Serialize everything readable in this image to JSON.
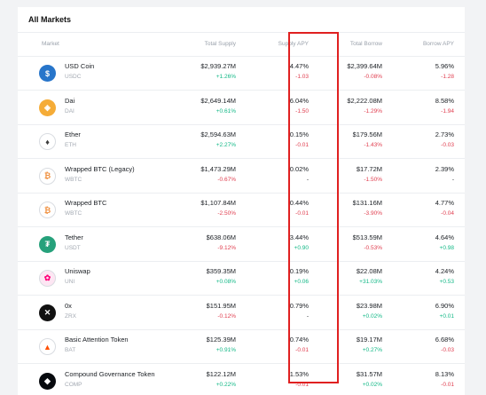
{
  "title": "All Markets",
  "headers": {
    "market": "Market",
    "total_supply": "Total Supply",
    "supply_apy": "Supply APY",
    "total_borrow": "Total Borrow",
    "borrow_apy": "Borrow APY"
  },
  "rows": [
    {
      "name": "USD Coin",
      "symbol": "USDC",
      "icon": "usdc-icon",
      "icon_color": "#2775ca",
      "icon_glyph": "$",
      "total_supply": "$2,939.27M",
      "total_supply_change": "+1.26%",
      "supply_apy": "4.47%",
      "supply_apy_change": "-1.03",
      "total_borrow": "$2,399.64M",
      "total_borrow_change": "-0.08%",
      "borrow_apy": "5.96%",
      "borrow_apy_change": "-1.28"
    },
    {
      "name": "Dai",
      "symbol": "DAI",
      "icon": "dai-icon",
      "icon_color": "#f5ac37",
      "icon_glyph": "◈",
      "total_supply": "$2,649.14M",
      "total_supply_change": "+0.61%",
      "supply_apy": "6.04%",
      "supply_apy_change": "-1.50",
      "total_borrow": "$2,222.08M",
      "total_borrow_change": "-1.29%",
      "borrow_apy": "8.58%",
      "borrow_apy_change": "-1.94"
    },
    {
      "name": "Ether",
      "symbol": "ETH",
      "icon": "ether-icon",
      "icon_color": "#ffffff",
      "icon_glyph": "♦",
      "total_supply": "$2,594.63M",
      "total_supply_change": "+2.27%",
      "supply_apy": "0.15%",
      "supply_apy_change": "-0.01",
      "total_borrow": "$179.56M",
      "total_borrow_change": "-1.43%",
      "borrow_apy": "2.73%",
      "borrow_apy_change": "-0.03"
    },
    {
      "name": "Wrapped BTC (Legacy)",
      "symbol": "WBTC",
      "icon": "wbtc-legacy-icon",
      "icon_color": "#ffffff",
      "icon_glyph": "₿",
      "total_supply": "$1,473.29M",
      "total_supply_change": "-0.67%",
      "supply_apy": "0.02%",
      "supply_apy_change": "-",
      "total_borrow": "$17.72M",
      "total_borrow_change": "-1.50%",
      "borrow_apy": "2.39%",
      "borrow_apy_change": "-"
    },
    {
      "name": "Wrapped BTC",
      "symbol": "WBTC",
      "icon": "wbtc-icon",
      "icon_color": "#ffffff",
      "icon_glyph": "₿",
      "total_supply": "$1,107.84M",
      "total_supply_change": "-2.50%",
      "supply_apy": "0.44%",
      "supply_apy_change": "-0.01",
      "total_borrow": "$131.16M",
      "total_borrow_change": "-3.90%",
      "borrow_apy": "4.77%",
      "borrow_apy_change": "-0.04"
    },
    {
      "name": "Tether",
      "symbol": "USDT",
      "icon": "tether-icon",
      "icon_color": "#26a17b",
      "icon_glyph": "₮",
      "total_supply": "$638.06M",
      "total_supply_change": "-9.12%",
      "supply_apy": "3.44%",
      "supply_apy_change": "+0.90",
      "total_borrow": "$513.59M",
      "total_borrow_change": "-0.53%",
      "borrow_apy": "4.64%",
      "borrow_apy_change": "+0.98"
    },
    {
      "name": "Uniswap",
      "symbol": "UNI",
      "icon": "uniswap-icon",
      "icon_color": "#fde6f3",
      "icon_glyph": "✿",
      "total_supply": "$359.35M",
      "total_supply_change": "+0.08%",
      "supply_apy": "0.19%",
      "supply_apy_change": "+0.06",
      "total_borrow": "$22.08M",
      "total_borrow_change": "+31.03%",
      "borrow_apy": "4.24%",
      "borrow_apy_change": "+0.53"
    },
    {
      "name": "0x",
      "symbol": "ZRX",
      "icon": "zrx-icon",
      "icon_color": "#111111",
      "icon_glyph": "✕",
      "total_supply": "$151.95M",
      "total_supply_change": "-0.12%",
      "supply_apy": "0.79%",
      "supply_apy_change": "-",
      "total_borrow": "$23.98M",
      "total_borrow_change": "+0.02%",
      "borrow_apy": "6.90%",
      "borrow_apy_change": "+0.01"
    },
    {
      "name": "Basic Attention Token",
      "symbol": "BAT",
      "icon": "bat-icon",
      "icon_color": "#ffffff",
      "icon_glyph": "▲",
      "total_supply": "$125.39M",
      "total_supply_change": "+0.91%",
      "supply_apy": "0.74%",
      "supply_apy_change": "-0.01",
      "total_borrow": "$19.17M",
      "total_borrow_change": "+0.27%",
      "borrow_apy": "6.68%",
      "borrow_apy_change": "-0.03"
    },
    {
      "name": "Compound Governance Token",
      "symbol": "COMP",
      "icon": "comp-icon",
      "icon_color": "#070a0e",
      "icon_glyph": "◆",
      "total_supply": "$122.12M",
      "total_supply_change": "+0.22%",
      "supply_apy": "1.53%",
      "supply_apy_change": "-0.01",
      "total_borrow": "$31.57M",
      "total_borrow_change": "+0.02%",
      "borrow_apy": "8.13%",
      "borrow_apy_change": "-0.01"
    }
  ]
}
